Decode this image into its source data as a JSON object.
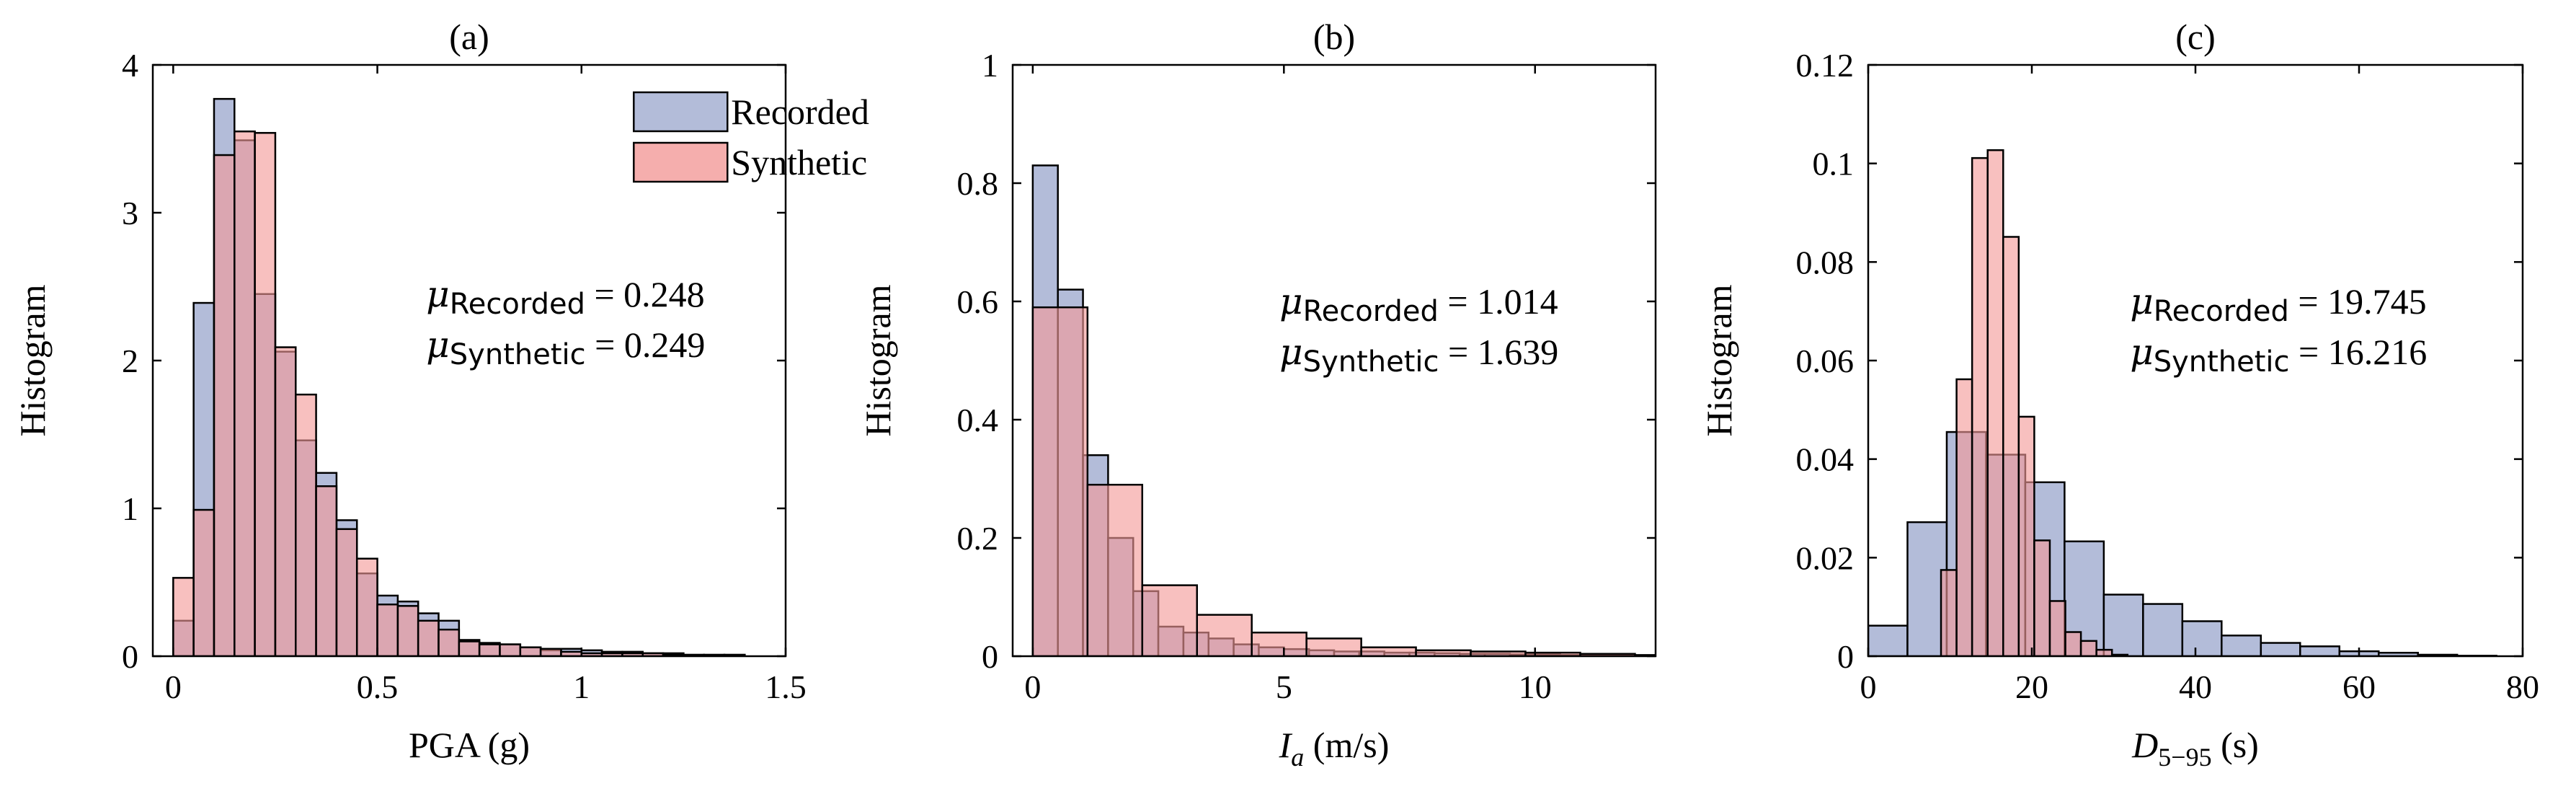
{
  "colors": {
    "recorded_fill": "#b3bcd9",
    "synthetic_fill": "#f39a98",
    "overlap_fill": "#c98f97",
    "edge": "#000000"
  },
  "chart_data": [
    {
      "type": "histogram",
      "title": "(a)",
      "xlabel": "PGA (g)",
      "xlabel_parts": {
        "main": "PGA (g)",
        "italic": "",
        "sub": "",
        "units": ""
      },
      "ylabel": "Histogram",
      "xlim": [
        -0.05,
        1.5
      ],
      "ylim": [
        0,
        4
      ],
      "xticks": [
        0,
        0.5,
        1,
        1.5
      ],
      "xtick_labels": [
        "0",
        "0.5",
        "1",
        "1.5"
      ],
      "yticks": [
        0,
        1,
        2,
        3,
        4
      ],
      "ytick_labels": [
        "0",
        "1",
        "2",
        "3",
        "4"
      ],
      "legend": {
        "position": "top-right",
        "entries": [
          "Recorded",
          "Synthetic"
        ]
      },
      "annotations": [
        {
          "symbol": "μ",
          "subscript": "Recorded",
          "value": "= 0.248"
        },
        {
          "symbol": "μ",
          "subscript": "Synthetic",
          "value": "= 0.249"
        }
      ],
      "series": [
        {
          "name": "Recorded",
          "bins": [
            [
              0,
              0.05
            ],
            [
              0.05,
              0.1
            ],
            [
              0.1,
              0.15
            ],
            [
              0.15,
              0.2
            ],
            [
              0.2,
              0.25
            ],
            [
              0.25,
              0.3
            ],
            [
              0.3,
              0.35
            ],
            [
              0.35,
              0.4
            ],
            [
              0.4,
              0.45
            ],
            [
              0.45,
              0.5
            ],
            [
              0.5,
              0.55
            ],
            [
              0.55,
              0.6
            ],
            [
              0.6,
              0.65
            ],
            [
              0.65,
              0.7
            ],
            [
              0.7,
              0.75
            ],
            [
              0.75,
              0.8
            ],
            [
              0.8,
              0.85
            ],
            [
              0.85,
              0.9
            ],
            [
              0.9,
              0.95
            ],
            [
              0.95,
              1.0
            ],
            [
              1.0,
              1.05
            ],
            [
              1.05,
              1.1
            ],
            [
              1.1,
              1.15
            ],
            [
              1.15,
              1.2
            ],
            [
              1.2,
              1.25
            ],
            [
              1.25,
              1.3
            ],
            [
              1.3,
              1.35
            ],
            [
              1.35,
              1.4
            ]
          ],
          "values": [
            0.24,
            2.39,
            3.77,
            3.49,
            2.45,
            2.06,
            1.46,
            1.24,
            0.92,
            0.56,
            0.41,
            0.37,
            0.29,
            0.24,
            0.11,
            0.09,
            0.08,
            0.06,
            0.04,
            0.05,
            0.04,
            0.03,
            0.03,
            0.02,
            0.02,
            0.01,
            0.01,
            0.01
          ]
        },
        {
          "name": "Synthetic",
          "bins": [
            [
              0,
              0.05
            ],
            [
              0.05,
              0.1
            ],
            [
              0.1,
              0.15
            ],
            [
              0.15,
              0.2
            ],
            [
              0.2,
              0.25
            ],
            [
              0.25,
              0.3
            ],
            [
              0.3,
              0.35
            ],
            [
              0.35,
              0.4
            ],
            [
              0.4,
              0.45
            ],
            [
              0.45,
              0.5
            ],
            [
              0.5,
              0.55
            ],
            [
              0.55,
              0.6
            ],
            [
              0.6,
              0.65
            ],
            [
              0.65,
              0.7
            ],
            [
              0.7,
              0.75
            ],
            [
              0.75,
              0.8
            ],
            [
              0.8,
              0.85
            ],
            [
              0.85,
              0.9
            ],
            [
              0.9,
              0.95
            ],
            [
              0.95,
              1.0
            ],
            [
              1.0,
              1.05
            ],
            [
              1.05,
              1.1
            ],
            [
              1.1,
              1.15
            ],
            [
              1.15,
              1.2
            ],
            [
              1.2,
              1.25
            ]
          ],
          "values": [
            0.53,
            0.99,
            3.39,
            3.55,
            3.54,
            2.09,
            1.77,
            1.15,
            0.86,
            0.66,
            0.35,
            0.34,
            0.24,
            0.18,
            0.1,
            0.08,
            0.08,
            0.06,
            0.05,
            0.03,
            0.02,
            0.02,
            0.02,
            0.02,
            0.01
          ]
        }
      ]
    },
    {
      "type": "histogram",
      "title": "(b)",
      "xlabel": "I_a (m/s)",
      "xlabel_parts": {
        "main": "",
        "italic": "I",
        "sub": "a",
        "units": "(m/s)"
      },
      "ylabel": "Histogram",
      "xlim": [
        -0.4,
        12.4
      ],
      "ylim": [
        0,
        1
      ],
      "xticks": [
        0,
        5,
        10
      ],
      "xtick_labels": [
        "0",
        "5",
        "10"
      ],
      "yticks": [
        0,
        0.2,
        0.4,
        0.6,
        0.8,
        1
      ],
      "ytick_labels": [
        "0",
        "0.2",
        "0.4",
        "0.6",
        "0.8",
        "1"
      ],
      "legend": null,
      "annotations": [
        {
          "symbol": "μ",
          "subscript": "Recorded",
          "value": "= 1.014"
        },
        {
          "symbol": "μ",
          "subscript": "Synthetic",
          "value": "= 1.639"
        }
      ],
      "series": [
        {
          "name": "Recorded",
          "bins": [
            [
              0,
              0.5
            ],
            [
              0.5,
              1.0
            ],
            [
              1.0,
              1.5
            ],
            [
              1.5,
              2.0
            ],
            [
              2.0,
              2.5
            ],
            [
              2.5,
              3.0
            ],
            [
              3.0,
              3.5
            ],
            [
              3.5,
              4.0
            ],
            [
              4.0,
              4.5
            ],
            [
              4.5,
              5.0
            ],
            [
              5.0,
              5.5
            ],
            [
              5.5,
              6.0
            ],
            [
              6.0,
              6.5
            ],
            [
              6.5,
              7.0
            ],
            [
              7.0,
              7.5
            ],
            [
              7.5,
              8.0
            ],
            [
              8.0,
              8.5
            ],
            [
              8.5,
              9.0
            ],
            [
              9.0,
              9.5
            ],
            [
              9.5,
              10.0
            ],
            [
              10.0,
              10.5
            ],
            [
              10.5,
              11.0
            ],
            [
              11.0,
              11.5
            ],
            [
              11.5,
              12.0
            ],
            [
              12.0,
              12.5
            ]
          ],
          "values": [
            0.83,
            0.62,
            0.34,
            0.2,
            0.11,
            0.05,
            0.04,
            0.03,
            0.02,
            0.015,
            0.012,
            0.01,
            0.008,
            0.008,
            0.006,
            0.006,
            0.005,
            0.004,
            0.004,
            0.003,
            0.003,
            0.002,
            0.002,
            0.002,
            0.002
          ]
        },
        {
          "name": "Synthetic",
          "bins": [
            [
              0,
              1.09
            ],
            [
              1.09,
              2.18
            ],
            [
              2.18,
              3.27
            ],
            [
              3.27,
              4.36
            ],
            [
              4.36,
              5.45
            ],
            [
              5.45,
              6.54
            ],
            [
              6.54,
              7.63
            ],
            [
              7.63,
              8.72
            ],
            [
              8.72,
              9.81
            ],
            [
              9.81,
              10.9
            ],
            [
              10.9,
              11.99
            ]
          ],
          "values": [
            0.59,
            0.29,
            0.12,
            0.07,
            0.04,
            0.03,
            0.015,
            0.01,
            0.008,
            0.006,
            0.004
          ]
        }
      ]
    },
    {
      "type": "histogram",
      "title": "(c)",
      "xlabel": "D_5−95 (s)",
      "xlabel_parts": {
        "main": "",
        "italic": "D",
        "sub": "5−95",
        "units": "(s)"
      },
      "ylabel": "Histogram",
      "xlim": [
        0,
        80
      ],
      "ylim": [
        0,
        0.12
      ],
      "xticks": [
        0,
        20,
        40,
        60,
        80
      ],
      "xtick_labels": [
        "0",
        "20",
        "40",
        "60",
        "80"
      ],
      "yticks": [
        0,
        0.02,
        0.04,
        0.06,
        0.08,
        0.1,
        0.12
      ],
      "ytick_labels": [
        "0",
        "0.02",
        "0.04",
        "0.06",
        "0.08",
        "0.1",
        "0.12"
      ],
      "legend": null,
      "annotations": [
        {
          "symbol": "μ",
          "subscript": "Recorded",
          "value": "= 19.745"
        },
        {
          "symbol": "μ",
          "subscript": "Synthetic",
          "value": "= 16.216"
        }
      ],
      "series": [
        {
          "name": "Recorded",
          "bins": [
            [
              0,
              4.8
            ],
            [
              4.8,
              9.6
            ],
            [
              9.6,
              14.4
            ],
            [
              14.4,
              19.2
            ],
            [
              19.2,
              24.0
            ],
            [
              24.0,
              28.8
            ],
            [
              28.8,
              33.6
            ],
            [
              33.6,
              38.4
            ],
            [
              38.4,
              43.2
            ],
            [
              43.2,
              48.0
            ],
            [
              48.0,
              52.8
            ],
            [
              52.8,
              57.6
            ],
            [
              57.6,
              62.4
            ],
            [
              62.4,
              67.2
            ],
            [
              67.2,
              72.0
            ],
            [
              72.0,
              76.8
            ]
          ],
          "values": [
            0.0062,
            0.0272,
            0.0455,
            0.0409,
            0.0353,
            0.0233,
            0.0125,
            0.0106,
            0.0071,
            0.0042,
            0.0027,
            0.002,
            0.001,
            0.0007,
            0.0003,
            0.0001
          ]
        },
        {
          "name": "Synthetic",
          "bins": [
            [
              8.9,
              10.8
            ],
            [
              10.8,
              12.7
            ],
            [
              12.7,
              14.6
            ],
            [
              14.6,
              16.5
            ],
            [
              16.5,
              18.4
            ],
            [
              18.4,
              20.3
            ],
            [
              20.3,
              22.2
            ],
            [
              22.2,
              24.1
            ],
            [
              24.1,
              26.0
            ],
            [
              26.0,
              27.9
            ],
            [
              27.9,
              29.8
            ],
            [
              29.8,
              31.7
            ]
          ],
          "values": [
            0.0175,
            0.0562,
            0.1011,
            0.1027,
            0.0851,
            0.0486,
            0.0235,
            0.0112,
            0.0049,
            0.0031,
            0.0013,
            0.0003
          ]
        }
      ]
    }
  ]
}
